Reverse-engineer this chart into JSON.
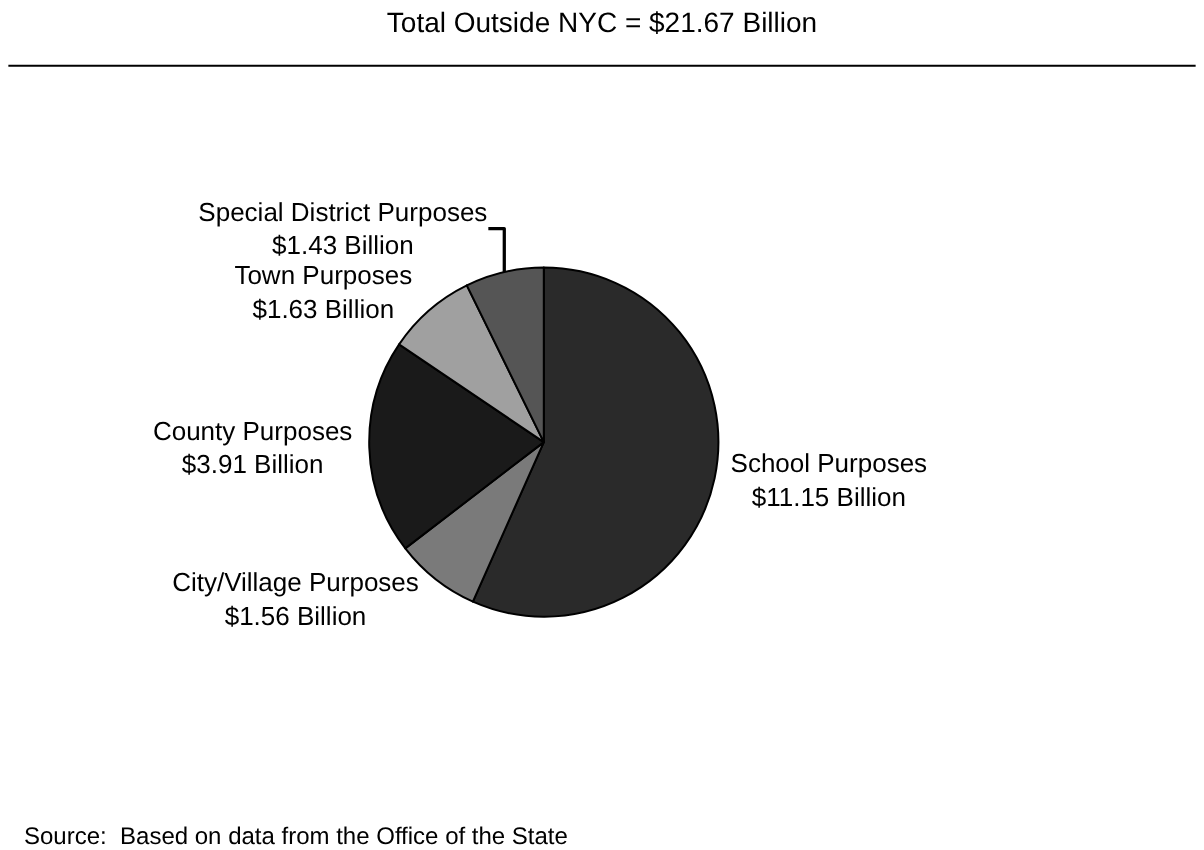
{
  "chart_data": {
    "type": "pie",
    "title": "Total Outside NYC = $21.67 Billion",
    "categories": [
      "School Purposes",
      "City/Village Purposes",
      "County Purposes",
      "Town Purposes",
      "Special District Purposes"
    ],
    "values": [
      11.15,
      1.56,
      3.91,
      1.63,
      1.43
    ],
    "value_labels": [
      "$11.15 Billion",
      "$1.56 Billion",
      "$3.91 Billion",
      "$1.63 Billion",
      "$1.43 Billion"
    ],
    "colors": [
      "#2a2a2a",
      "#7a7a7a",
      "#1a1a1a",
      "#a0a0a0",
      "#555555"
    ],
    "annotations": [
      "Source:  Based on data from the Office of the State"
    ]
  }
}
